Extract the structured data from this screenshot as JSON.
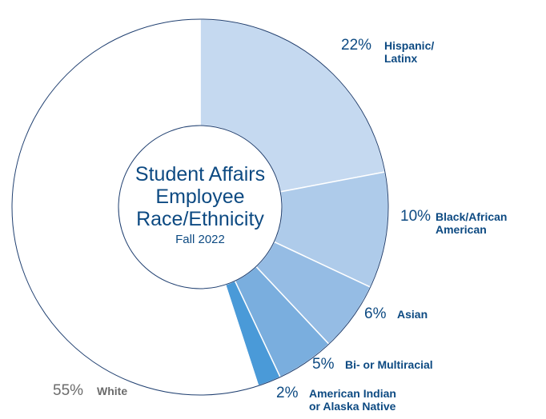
{
  "chart_data": {
    "type": "pie",
    "style": "donut",
    "title": "Student Affairs Employee Race/Ethnicity",
    "title_lines": [
      "Student Affairs",
      "Employee",
      "Race/Ethnicity"
    ],
    "subtitle": "Fall 2022",
    "unit": "%",
    "slices": [
      {
        "category": "Hispanic/Latinx",
        "value": 22,
        "value_label": "22%",
        "label_lines": [
          "Hispanic/",
          "Latinx"
        ],
        "color": "#c5d9f0"
      },
      {
        "category": "Black/African American",
        "value": 10,
        "value_label": "10%",
        "label_lines": [
          "Black/African",
          "American"
        ],
        "color": "#aecbea"
      },
      {
        "category": "Asian",
        "value": 6,
        "value_label": "6%",
        "label_lines": [
          "Asian"
        ],
        "color": "#95bce4"
      },
      {
        "category": "Bi- or Multiracial",
        "value": 5,
        "value_label": "5%",
        "label_lines": [
          "Bi- or Multiracial"
        ],
        "color": "#7aaede"
      },
      {
        "category": "American Indian or Alaska Native",
        "value": 2,
        "value_label": "2%",
        "label_lines": [
          "American Indian",
          "or Alaska Native"
        ],
        "color": "#4a9ad8"
      },
      {
        "category": "White",
        "value": 55,
        "value_label": "55%",
        "label_lines": [
          "White"
        ],
        "color": "#ffffff"
      }
    ],
    "colors": {
      "text": "#0d4a82",
      "white_label": "#6b6b6b",
      "outline": "#1f3f70"
    }
  }
}
